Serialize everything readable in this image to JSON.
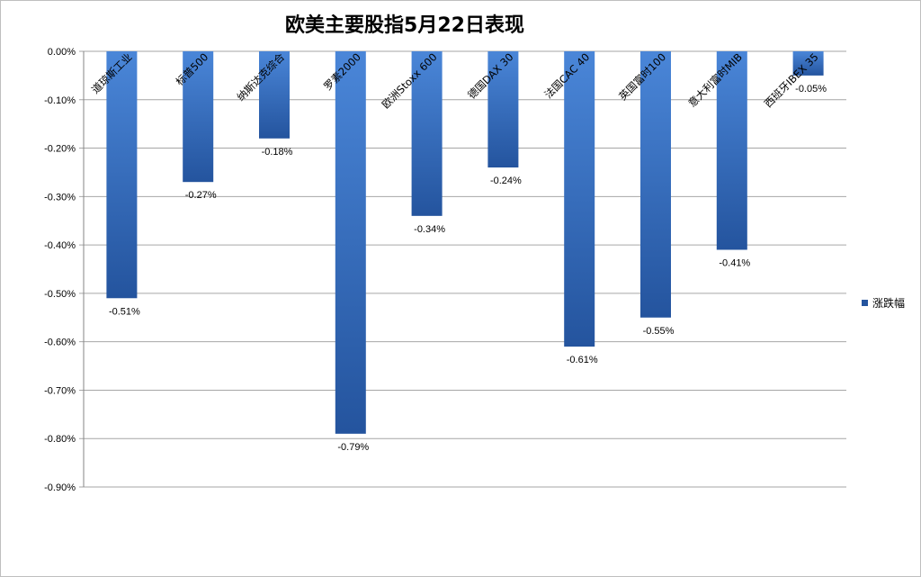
{
  "chart_data": {
    "type": "bar",
    "title": "欧美主要股指5月22日表现",
    "categories": [
      "道琼斯工业",
      "标普500",
      "纳斯达克综合",
      "罗素2000",
      "欧洲Stoxx 600",
      "德国DAX 30",
      "法国CAC 40",
      "英国富时100",
      "意大利富时MIB",
      "西班牙IBEX 35"
    ],
    "series": [
      {
        "name": "涨跌幅",
        "values": [
          -0.51,
          -0.27,
          -0.18,
          -0.79,
          -0.34,
          -0.24,
          -0.61,
          -0.55,
          -0.41,
          -0.05
        ],
        "labels": [
          "-0.51%",
          "-0.27%",
          "-0.18%",
          "-0.79%",
          "-0.34%",
          "-0.24%",
          "-0.61%",
          "-0.55%",
          "-0.41%",
          "-0.05%"
        ]
      }
    ],
    "yticks": [
      "0.00%",
      "-0.10%",
      "-0.20%",
      "-0.30%",
      "-0.40%",
      "-0.50%",
      "-0.60%",
      "-0.70%",
      "-0.80%",
      "-0.90%"
    ],
    "ylim": [
      -0.9,
      0
    ],
    "grid": true,
    "legend_position": "right",
    "colors": {
      "bar_light": "#4a86d8",
      "bar_dark": "#24549e",
      "grid": "#a6a6a6"
    }
  }
}
